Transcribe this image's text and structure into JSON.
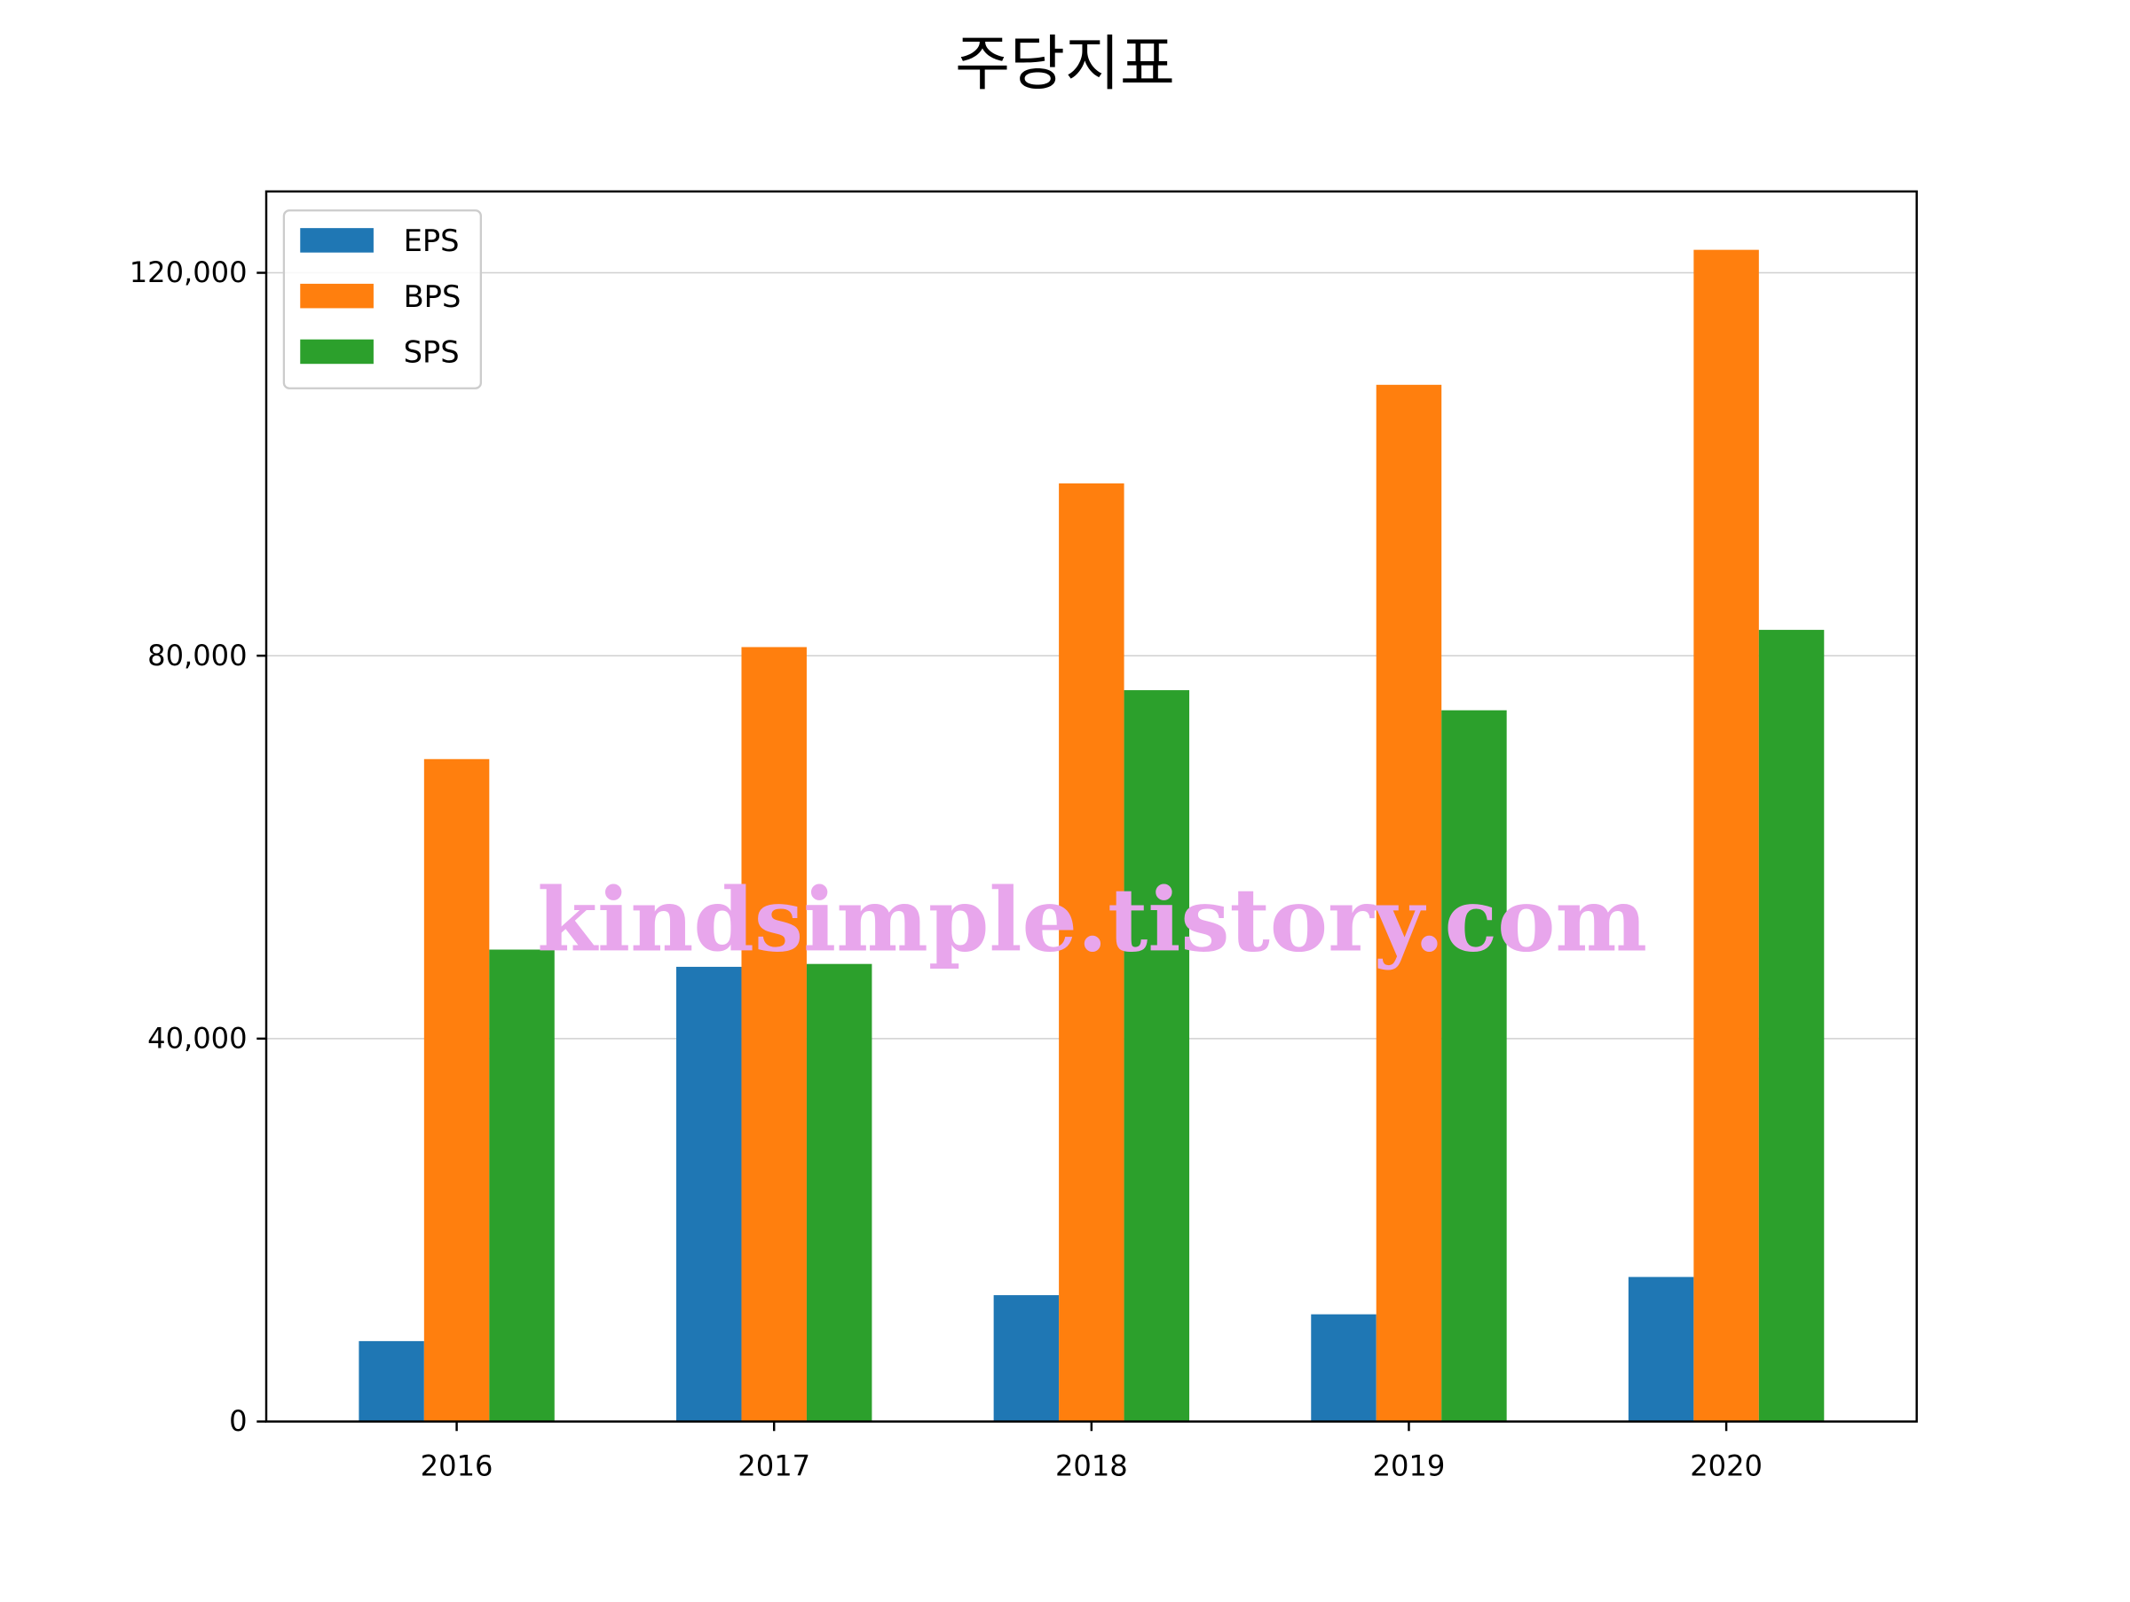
{
  "chart_data": {
    "type": "bar",
    "title": "주당지표",
    "xlabel": "",
    "ylabel": "",
    "categories": [
      "2016",
      "2017",
      "2018",
      "2019",
      "2020"
    ],
    "series": [
      {
        "name": "EPS",
        "values": [
          8400,
          47500,
          13200,
          11200,
          15100
        ],
        "color": "#1f77b4"
      },
      {
        "name": "BPS",
        "values": [
          69200,
          80900,
          98000,
          108300,
          122400
        ],
        "color": "#ff7f0e"
      },
      {
        "name": "SPS",
        "values": [
          49300,
          47800,
          76400,
          74300,
          82700
        ],
        "color": "#2ca02c"
      }
    ],
    "ylim": [
      0,
      128500
    ],
    "yticks": [
      0,
      40000,
      80000,
      120000
    ],
    "ytick_labels": [
      "0",
      "40,000",
      "80,000",
      "120,000"
    ],
    "grid": "y",
    "legend_position": "upper-left",
    "watermark": "kindsimple.tistory.com"
  }
}
